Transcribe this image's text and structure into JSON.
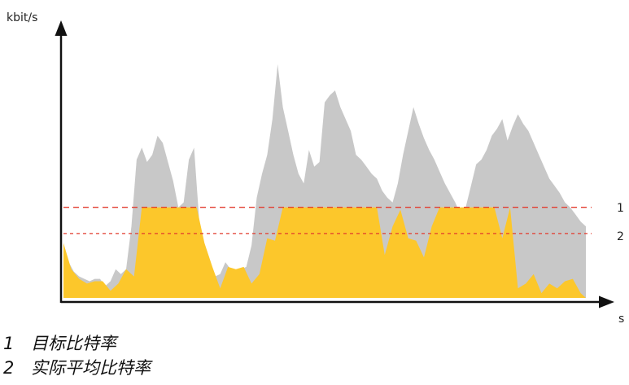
{
  "chart_data": {
    "type": "area",
    "xlabel": "s",
    "ylabel": "kbit/s",
    "xlim": [
      0,
      100
    ],
    "ylim": [
      0,
      100
    ],
    "grid": false,
    "reference_lines": [
      {
        "id": "1",
        "y": 38,
        "color": "#e23b2e",
        "style": "dashed"
      },
      {
        "id": "2",
        "y": 27,
        "color": "#e23b2e",
        "style": "dashed"
      }
    ],
    "series": [
      {
        "color": "#c8c8c8",
        "x": [
          0,
          1,
          2,
          3,
          4,
          5,
          6,
          7,
          8,
          9,
          10,
          11,
          12,
          13,
          14,
          15,
          16,
          17,
          18,
          19,
          20,
          21,
          22,
          23,
          24,
          25,
          26,
          27,
          28,
          29,
          30,
          31,
          32,
          33,
          34,
          35,
          36,
          37,
          38,
          39,
          40,
          41,
          42,
          43,
          44,
          45,
          46,
          47,
          48,
          49,
          50,
          51,
          52,
          53,
          54,
          55,
          56,
          57,
          58,
          59,
          60,
          61,
          62,
          63,
          64,
          65,
          66,
          67,
          68,
          69,
          70,
          71,
          72,
          73,
          74,
          75,
          76,
          77,
          78,
          79,
          80,
          81,
          82,
          83,
          84,
          85,
          86,
          87,
          88,
          89,
          90,
          91,
          92,
          93,
          94,
          95,
          96,
          97,
          98,
          99,
          100
        ],
        "values": [
          23,
          15,
          11,
          9,
          8,
          7,
          8,
          8,
          5,
          7,
          12,
          10,
          12,
          30,
          58,
          63,
          57,
          60,
          68,
          65,
          57,
          49,
          38,
          40,
          58,
          63,
          32,
          22,
          12,
          9,
          10,
          15,
          12,
          11,
          12,
          13,
          22,
          42,
          52,
          60,
          75,
          98,
          80,
          70,
          60,
          52,
          48,
          62,
          55,
          57,
          82,
          85,
          87,
          80,
          75,
          70,
          60,
          58,
          55,
          52,
          50,
          45,
          42,
          40,
          48,
          60,
          70,
          80,
          73,
          67,
          62,
          58,
          53,
          48,
          44,
          40,
          35,
          38,
          47,
          56,
          58,
          62,
          68,
          71,
          75,
          66,
          72,
          77,
          73,
          70,
          65,
          60,
          55,
          50,
          47,
          44,
          40,
          38,
          35,
          32,
          30
        ]
      },
      {
        "color": "#fcc72b",
        "x": [
          0,
          1.5,
          3,
          4.5,
          6,
          7.5,
          9,
          10.5,
          12,
          13.5,
          15,
          16.5,
          18,
          19.5,
          21,
          22.5,
          24,
          25.5,
          27,
          28.5,
          30,
          31.5,
          33,
          34.5,
          36,
          37.5,
          39,
          40.5,
          42,
          43.5,
          45,
          46.5,
          48,
          49.5,
          51,
          52.5,
          54,
          55.5,
          57,
          58.5,
          60,
          61.5,
          63,
          64.5,
          66,
          67.5,
          69,
          70.5,
          72,
          73.5,
          75,
          76.5,
          78,
          79.5,
          81,
          82.5,
          84,
          85.5,
          87,
          88.5,
          90,
          91.5,
          93,
          94.5,
          96,
          97.5,
          99,
          100
        ],
        "values": [
          23,
          12,
          8,
          6,
          7,
          7,
          3,
          6,
          12,
          9,
          38,
          38,
          38,
          38,
          38,
          38,
          38,
          38,
          23,
          13,
          4,
          13,
          12,
          13,
          6,
          10,
          25,
          24,
          38,
          38,
          38,
          38,
          38,
          38,
          38,
          38,
          38,
          38,
          38,
          38,
          38,
          18,
          30,
          37,
          25,
          24,
          17,
          30,
          38,
          38,
          38,
          38,
          38,
          38,
          38,
          38,
          25,
          38,
          4,
          6,
          10,
          2,
          6,
          4,
          7,
          8,
          2,
          0
        ]
      }
    ]
  },
  "labels": {
    "y_axis": "kbit/s",
    "x_axis": "s",
    "ref_1": "1",
    "ref_2": "2"
  },
  "legend": [
    {
      "num": "1",
      "text": "目标比特率"
    },
    {
      "num": "2",
      "text": "实际平均比特率"
    }
  ]
}
